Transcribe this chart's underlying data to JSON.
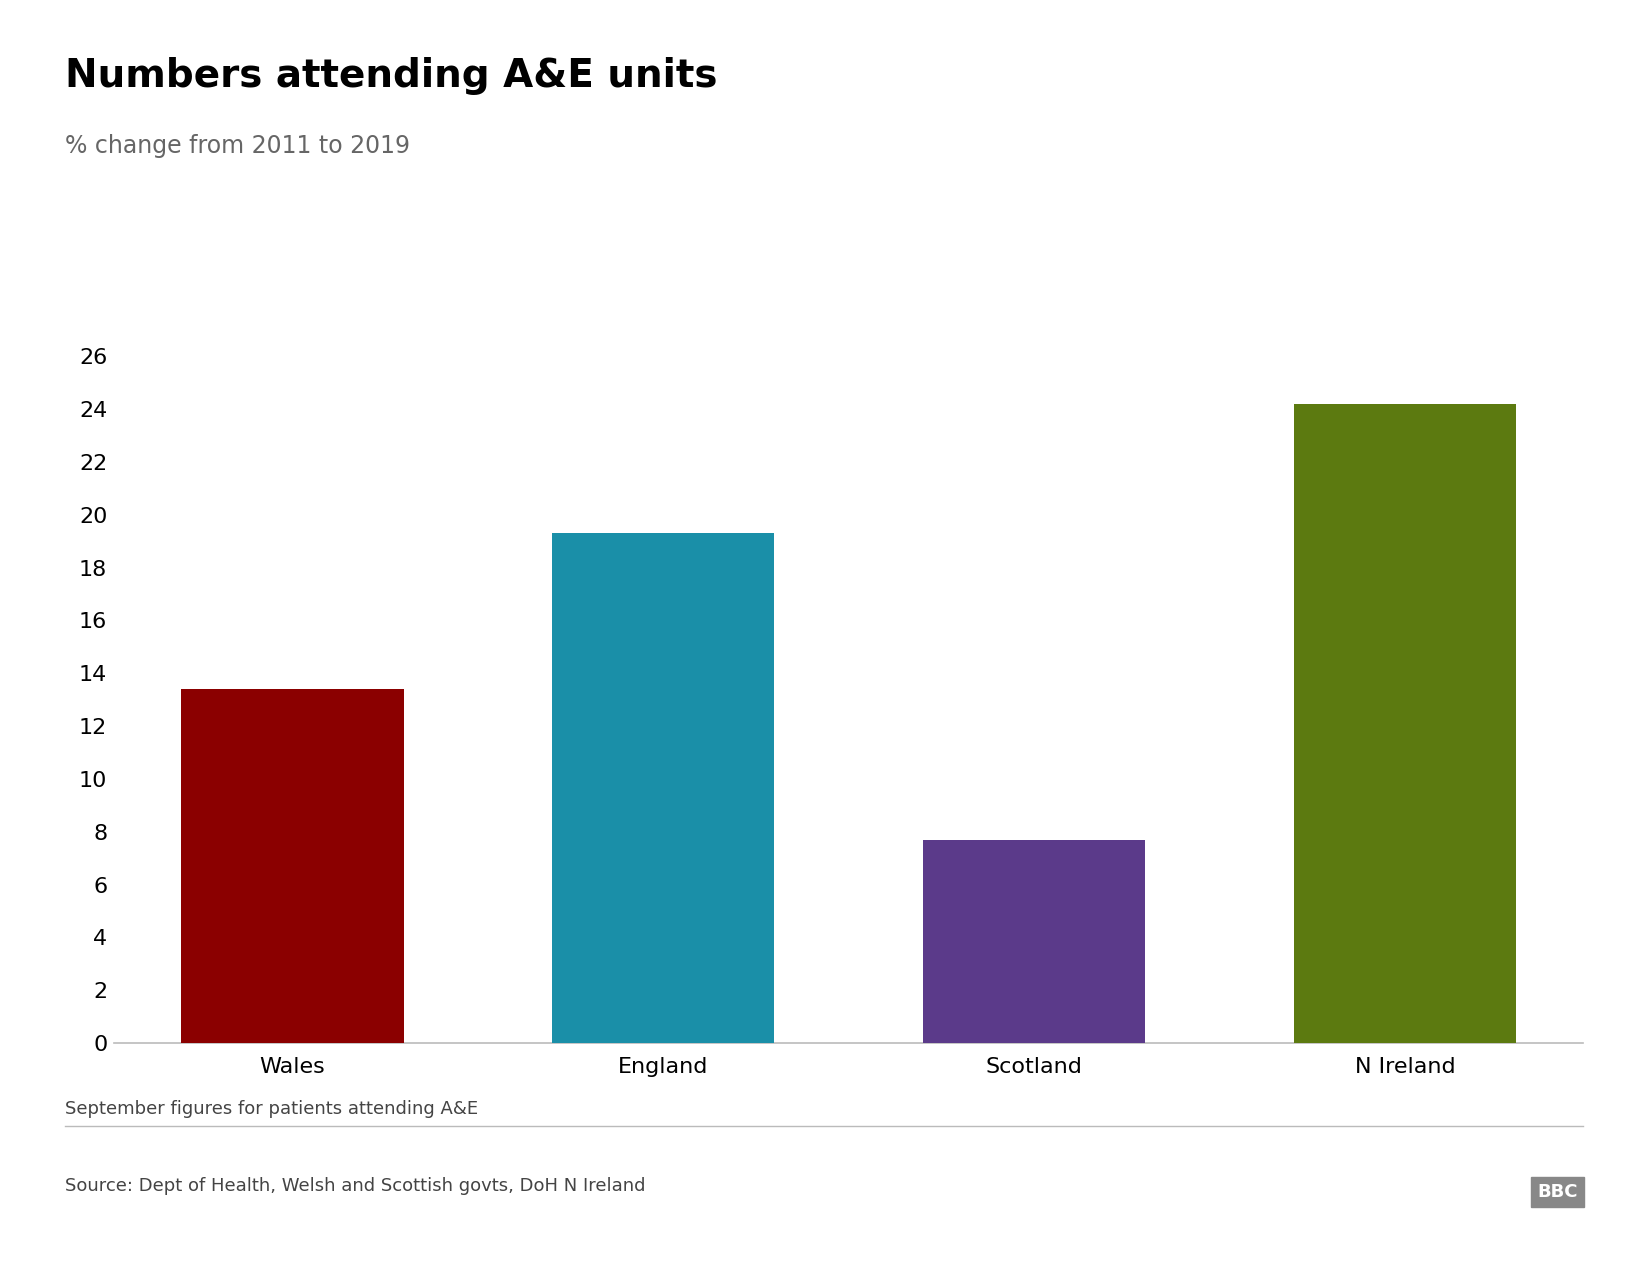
{
  "categories": [
    "Wales",
    "England",
    "Scotland",
    "N Ireland"
  ],
  "values": [
    13.4,
    19.3,
    7.7,
    24.2
  ],
  "bar_colors": [
    "#8B0000",
    "#1A8FA8",
    "#5B3A8A",
    "#5C7A10"
  ],
  "title": "Numbers attending A&E units",
  "subtitle": "% change from 2011 to 2019",
  "ylim": [
    0,
    26
  ],
  "yticks": [
    0,
    2,
    4,
    6,
    8,
    10,
    12,
    14,
    16,
    18,
    20,
    22,
    24,
    26
  ],
  "footnote": "September figures for patients attending A&E",
  "source": "Source: Dept of Health, Welsh and Scottish govts, DoH N Ireland",
  "bbc_logo": "BBC",
  "title_fontsize": 28,
  "subtitle_fontsize": 17,
  "tick_fontsize": 16,
  "label_fontsize": 16,
  "footnote_fontsize": 13,
  "source_fontsize": 13,
  "background_color": "#FFFFFF",
  "bar_width": 0.6,
  "spine_color": "#BBBBBB",
  "grid_color": "#FFFFFF"
}
